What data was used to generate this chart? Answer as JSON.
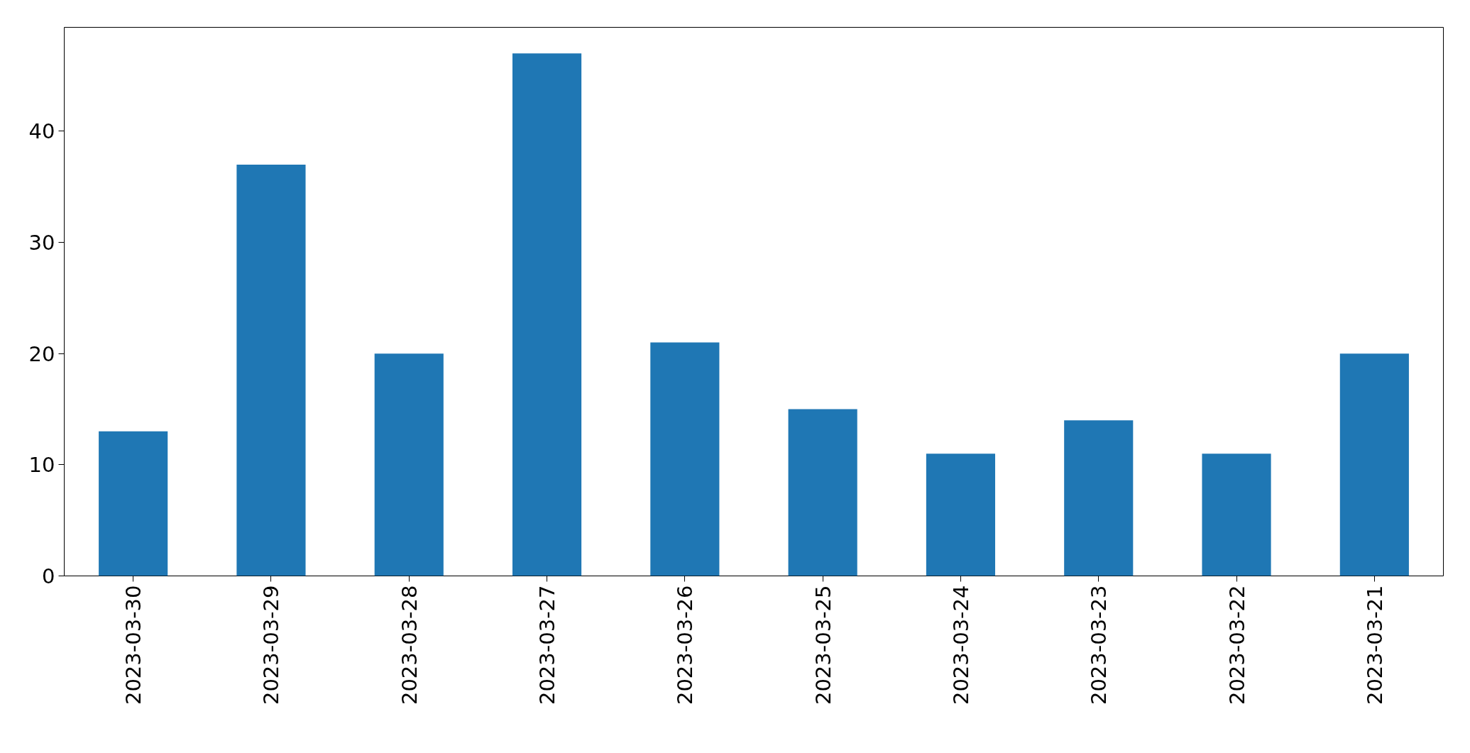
{
  "chart_data": {
    "type": "bar",
    "categories": [
      "2023-03-30",
      "2023-03-29",
      "2023-03-28",
      "2023-03-27",
      "2023-03-26",
      "2023-03-25",
      "2023-03-24",
      "2023-03-23",
      "2023-03-22",
      "2023-03-21"
    ],
    "values": [
      13,
      37,
      20,
      47,
      21,
      15,
      11,
      14,
      11,
      20
    ],
    "color": "#1f77b4",
    "ylim": [
      0,
      49.35
    ],
    "yticks": [
      0,
      10,
      20,
      30,
      40
    ]
  }
}
